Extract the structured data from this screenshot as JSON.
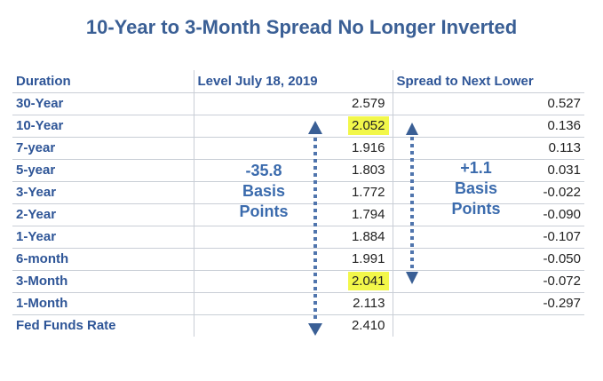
{
  "title": "10-Year to 3-Month Spread No Longer Inverted",
  "table": {
    "headers": [
      "Duration",
      "Level July 18, 2019",
      "Spread to Next Lower"
    ],
    "rows": [
      {
        "duration": "30-Year",
        "level": "2.579",
        "spread": "0.527",
        "highlight": false
      },
      {
        "duration": "10-Year",
        "level": "2.052",
        "spread": "0.136",
        "highlight": true
      },
      {
        "duration": "7-year",
        "level": "1.916",
        "spread": "0.113",
        "highlight": false
      },
      {
        "duration": "5-year",
        "level": "1.803",
        "spread": "0.031",
        "highlight": false
      },
      {
        "duration": "3-Year",
        "level": "1.772",
        "spread": "-0.022",
        "highlight": false
      },
      {
        "duration": "2-Year",
        "level": "1.794",
        "spread": "-0.090",
        "highlight": false
      },
      {
        "duration": "1-Year",
        "level": "1.884",
        "spread": "-0.107",
        "highlight": false
      },
      {
        "duration": "6-month",
        "level": "1.991",
        "spread": "-0.050",
        "highlight": false
      },
      {
        "duration": "3-Month",
        "level": "2.041",
        "spread": "-0.072",
        "highlight": true
      },
      {
        "duration": "1-Month",
        "level": "2.113",
        "spread": "-0.297",
        "highlight": false
      },
      {
        "duration": "Fed Funds Rate",
        "level": "2.410",
        "spread": "",
        "highlight": false
      }
    ]
  },
  "annotations": {
    "left": [
      "-35.8",
      "Basis",
      "Points"
    ],
    "right": [
      "+1.1",
      "Basis",
      "Points"
    ]
  },
  "colors": {
    "title": "#3a5f95",
    "label": "#2e5597",
    "note": "#3b6bad",
    "highlight": "#f2f74a",
    "grid": "#c9ced6"
  },
  "icons": {
    "left_arrow": "dotted-double-arrow-icon",
    "right_arrow": "dotted-double-arrow-icon"
  }
}
